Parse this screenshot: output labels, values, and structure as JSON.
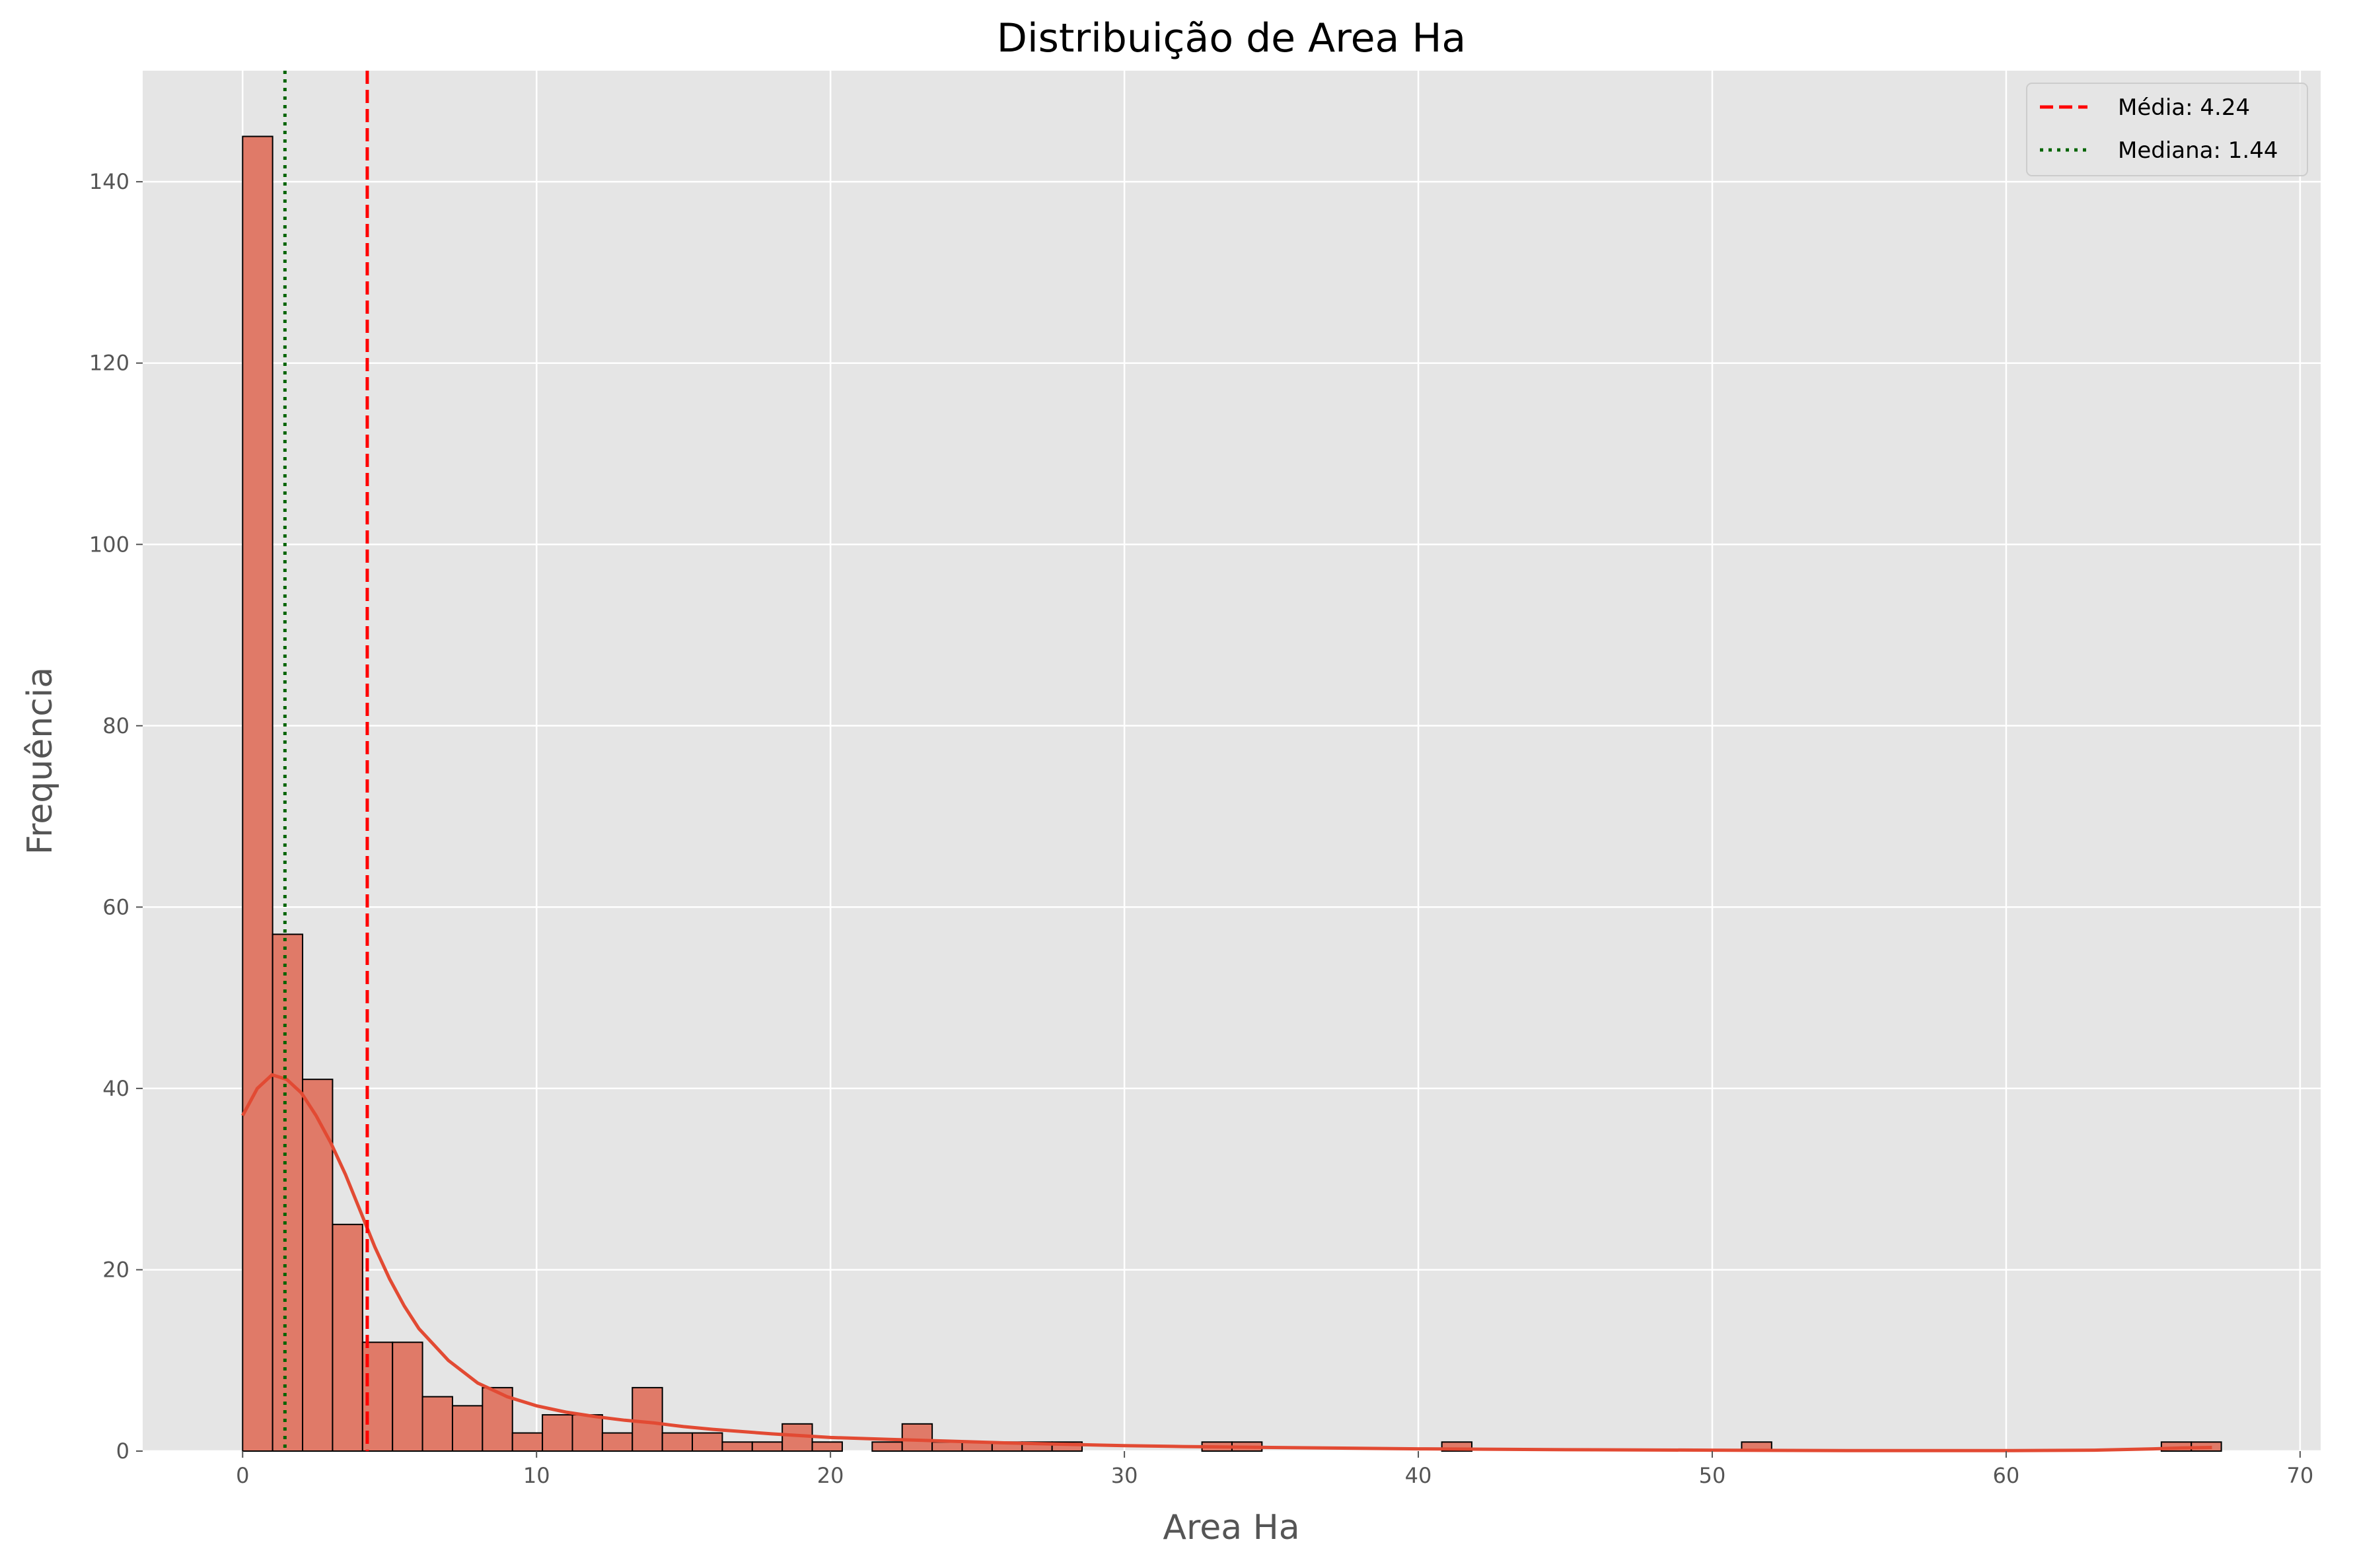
{
  "chart_data": {
    "type": "bar",
    "title": "Distribuição de Area Ha",
    "xlabel": "Area Ha",
    "ylabel": "Frequência",
    "xlim": [
      -3.4,
      70.7
    ],
    "ylim": [
      0,
      152.25
    ],
    "xticks": [
      0,
      10,
      20,
      30,
      40,
      50,
      60,
      70
    ],
    "yticks": [
      0,
      20,
      40,
      60,
      80,
      100,
      120,
      140
    ],
    "grid": true,
    "legend_position": "top-right",
    "bin_start": 0.0,
    "bin_width": 1.02,
    "counts": [
      145,
      57,
      41,
      25,
      12,
      12,
      6,
      5,
      7,
      2,
      4,
      4,
      2,
      7,
      2,
      2,
      1,
      1,
      3,
      1,
      0,
      1,
      3,
      1,
      1,
      1,
      1,
      1,
      0,
      0,
      0,
      0,
      1,
      1,
      0,
      0,
      0,
      0,
      0,
      0,
      1,
      0,
      0,
      0,
      0,
      0,
      0,
      0,
      0,
      0,
      1,
      0,
      0,
      0,
      0,
      0,
      0,
      0,
      0,
      0,
      0,
      0,
      0,
      0,
      1,
      1
    ],
    "kde": {
      "x": [
        0,
        0.5,
        1,
        1.5,
        2,
        2.5,
        3,
        3.5,
        4,
        4.5,
        5,
        5.5,
        6,
        7,
        8,
        9,
        10,
        11,
        12,
        13,
        14,
        15,
        16,
        18,
        20,
        22,
        24,
        26,
        28,
        30,
        32,
        35,
        40,
        45,
        50,
        55,
        60,
        63,
        65,
        66,
        67
      ],
      "y": [
        37,
        40,
        41.5,
        41,
        39.5,
        37,
        34,
        30.5,
        26.5,
        22.5,
        19,
        16,
        13.5,
        10,
        7.5,
        6,
        5,
        4.3,
        3.8,
        3.4,
        3.1,
        2.7,
        2.4,
        1.9,
        1.5,
        1.3,
        1.1,
        0.9,
        0.75,
        0.6,
        0.5,
        0.4,
        0.25,
        0.15,
        0.1,
        0.05,
        0.05,
        0.1,
        0.25,
        0.35,
        0.4
      ]
    },
    "mean_line": {
      "value": 4.24,
      "label": "Média: 4.24",
      "color": "#ff0000"
    },
    "median_line": {
      "value": 1.44,
      "label": "Mediana: 1.44",
      "color": "#006400"
    },
    "colors": {
      "bar_fill": "#e07a68",
      "bar_edge": "#000000",
      "kde": "#e24a33",
      "background": "#e5e5e5",
      "grid": "#ffffff"
    }
  }
}
